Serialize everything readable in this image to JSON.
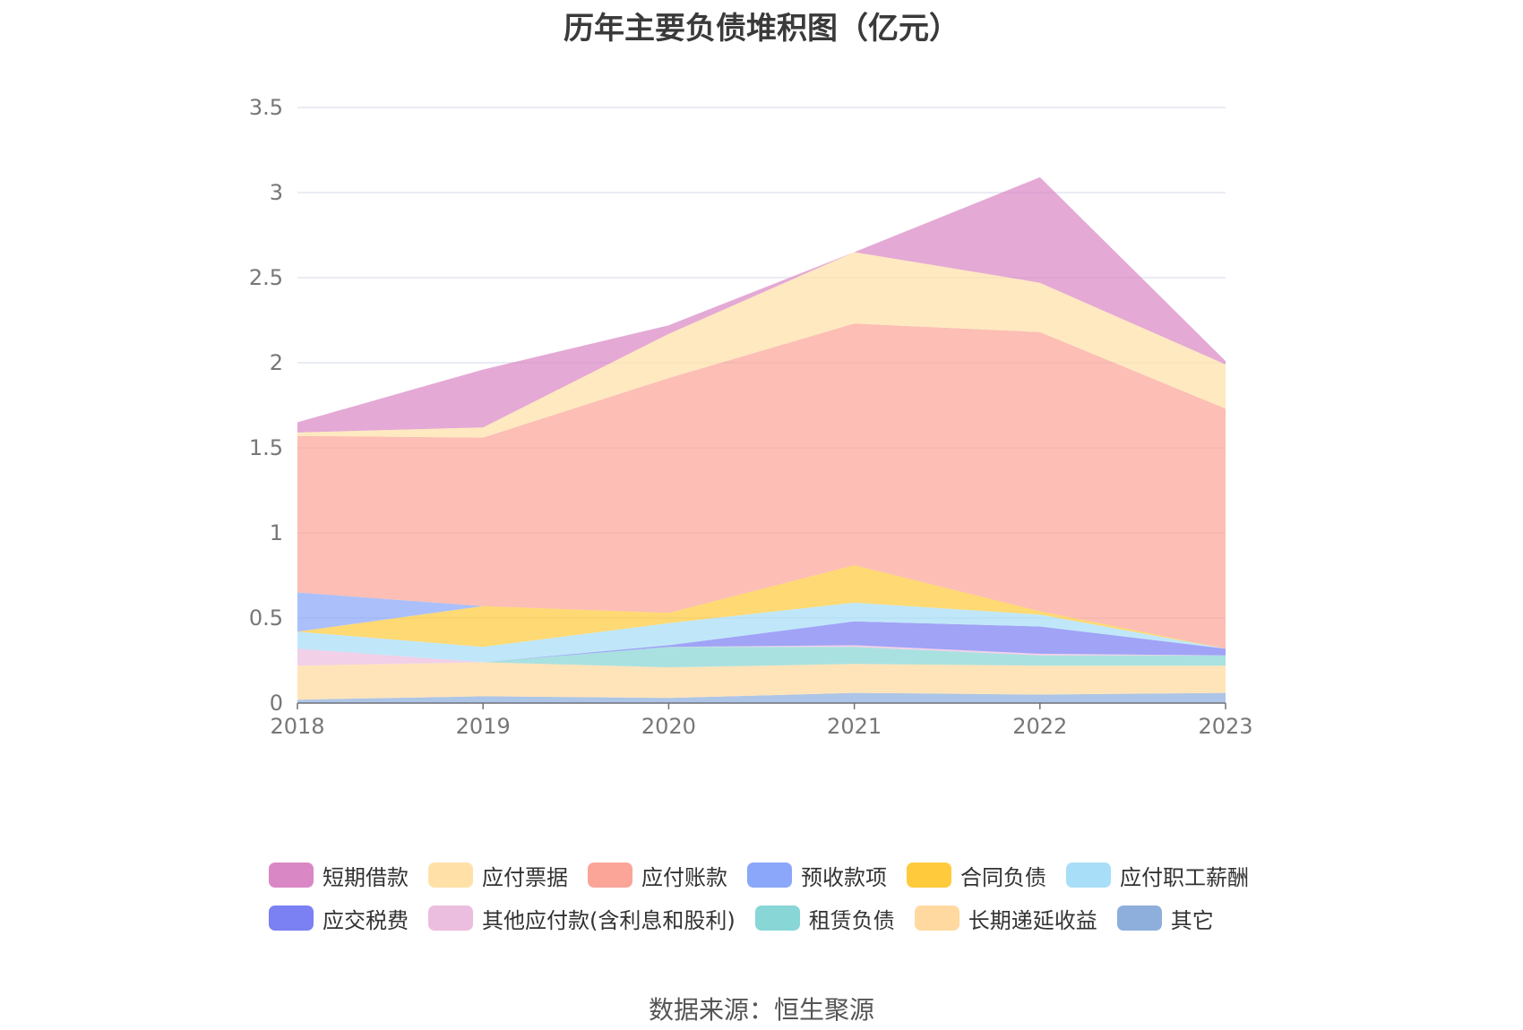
{
  "chart_data": {
    "type": "area",
    "stacked": true,
    "title": "历年主要负债堆积图（亿元）",
    "x": [
      "2018",
      "2019",
      "2020",
      "2021",
      "2022",
      "2023"
    ],
    "y_ticks": [
      "0",
      "0.5",
      "1",
      "1.5",
      "2",
      "2.5",
      "3",
      "3.5"
    ],
    "ylim": [
      0,
      3.5
    ],
    "grid": true,
    "legend_position": "bottom",
    "series": [
      {
        "name": "其它",
        "color": "#8eaedc",
        "values": [
          0.02,
          0.04,
          0.03,
          0.06,
          0.05,
          0.06
        ]
      },
      {
        "name": "长期递延收益",
        "color": "#ffd9a0",
        "values": [
          0.2,
          0.2,
          0.18,
          0.17,
          0.17,
          0.16
        ]
      },
      {
        "name": "租赁负债",
        "color": "#88d6d6",
        "values": [
          0,
          0,
          0.12,
          0.1,
          0.06,
          0.06
        ]
      },
      {
        "name": "其他应付款(含利息和股利)",
        "color": "#ebbedf",
        "values": [
          0.1,
          0.0,
          0.0,
          0.01,
          0.01,
          0.0
        ]
      },
      {
        "name": "应交税费",
        "color": "#7b80f3",
        "values": [
          0.0,
          0.0,
          0.01,
          0.14,
          0.16,
          0.04
        ]
      },
      {
        "name": "应付职工薪酬",
        "color": "#a8def7",
        "values": [
          0.1,
          0.09,
          0.13,
          0.11,
          0.07,
          0.0
        ]
      },
      {
        "name": "合同负债",
        "color": "#ffcb3d",
        "values": [
          0.0,
          0.24,
          0.06,
          0.22,
          0.02,
          0.0
        ]
      },
      {
        "name": "预收款项",
        "color": "#8aa7fa",
        "values": [
          0.23,
          0.0,
          0.0,
          0.0,
          0.0,
          0.0
        ]
      },
      {
        "name": "应付账款",
        "color": "#fba599",
        "values": [
          0.92,
          0.99,
          1.38,
          1.42,
          1.64,
          1.41
        ]
      },
      {
        "name": "应付票据",
        "color": "#ffe1a8",
        "values": [
          0.02,
          0.06,
          0.26,
          0.42,
          0.29,
          0.26
        ]
      },
      {
        "name": "短期借款",
        "color": "#da88c5",
        "values": [
          0.06,
          0.34,
          0.05,
          0.0,
          0.62,
          0.02
        ]
      }
    ],
    "legend": [
      "短期借款",
      "应付票据",
      "应付账款",
      "预收款项",
      "合同负债",
      "应付职工薪酬",
      "应交税费",
      "其他应付款(含利息和股利)",
      "租赁负债",
      "长期递延收益",
      "其它"
    ],
    "source": "数据来源：恒生聚源"
  }
}
